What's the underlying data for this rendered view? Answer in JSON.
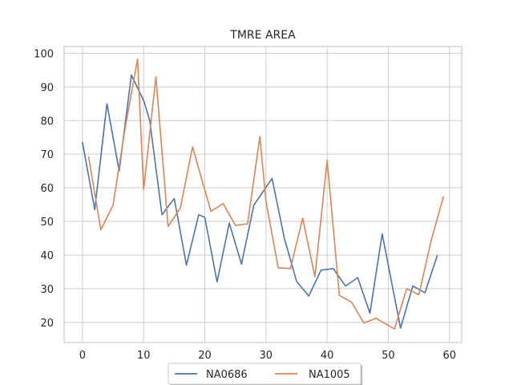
{
  "chart_data": {
    "type": "line",
    "title": "TMRE AREA",
    "xlabel": "",
    "ylabel": "",
    "xlim": [
      -3,
      62
    ],
    "ylim": [
      14,
      102
    ],
    "xticks": [
      0,
      10,
      20,
      30,
      40,
      50,
      60
    ],
    "yticks": [
      20,
      30,
      40,
      50,
      60,
      70,
      80,
      90,
      100
    ],
    "grid": true,
    "legend_position": "bottom-center",
    "series": [
      {
        "name": "NA0686",
        "color": "#4c72b0",
        "x": [
          0,
          2,
          4,
          6,
          8,
          10,
          11,
          13,
          15,
          17,
          19,
          20,
          22,
          24,
          26,
          28,
          31,
          33,
          35,
          37,
          39,
          41,
          43,
          45,
          47,
          49,
          52,
          54,
          56,
          58
        ],
        "y": [
          73.5,
          53.5,
          85,
          65,
          93.5,
          86,
          80,
          52,
          56.8,
          37,
          52,
          51.2,
          32,
          49.5,
          37.3,
          54.8,
          62.8,
          45,
          32.2,
          27.8,
          35.5,
          36,
          30.8,
          33.3,
          22.7,
          46.3,
          18.3,
          30.8,
          28.8,
          39.8
        ]
      },
      {
        "name": "NA1005",
        "color": "#dd8452",
        "x": [
          1,
          3,
          5,
          7,
          9,
          10,
          12,
          14,
          16,
          18,
          21,
          23,
          25,
          27,
          29,
          30,
          32,
          34,
          36,
          38,
          40,
          42,
          44,
          46,
          48,
          51,
          53,
          55,
          57,
          59
        ],
        "y": [
          69.2,
          47.5,
          54.8,
          78,
          98.3,
          59.5,
          93,
          48.5,
          54,
          72.2,
          53,
          55.3,
          48.8,
          49.3,
          75.2,
          56,
          36.2,
          36,
          51,
          33.5,
          68.2,
          28,
          26,
          19.8,
          21.2,
          18,
          30,
          28.2,
          44.2,
          57.3
        ]
      }
    ]
  }
}
